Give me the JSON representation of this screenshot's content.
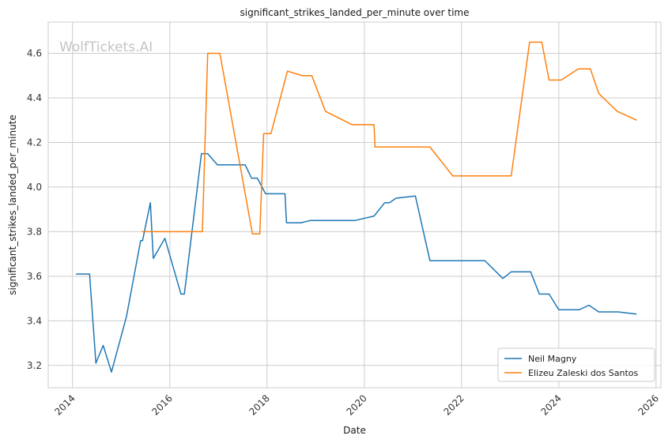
{
  "chart_data": {
    "type": "line",
    "title": "significant_strikes_landed_per_minute over time",
    "xlabel": "Date",
    "ylabel": "significant_strikes_landed_per_minute",
    "watermark": "WolfTickets.AI",
    "xlim": [
      2013.5,
      2026.1
    ],
    "ylim": [
      3.1,
      4.74
    ],
    "x_ticks": [
      2014,
      2016,
      2018,
      2020,
      2022,
      2024,
      2026
    ],
    "x_tick_labels": [
      "2014",
      "2016",
      "2018",
      "2020",
      "2022",
      "2024",
      "2026"
    ],
    "y_ticks": [
      3.2,
      3.4,
      3.6,
      3.8,
      4.0,
      4.2,
      4.4,
      4.6
    ],
    "y_tick_labels": [
      "3.2",
      "3.4",
      "3.6",
      "3.8",
      "4.0",
      "4.2",
      "4.4",
      "4.6"
    ],
    "grid": true,
    "legend_position": "bottom-right",
    "series": [
      {
        "name": "Neil Magny",
        "color": "#1f77b4",
        "points": [
          [
            2014.07,
            3.61
          ],
          [
            2014.35,
            3.61
          ],
          [
            2014.48,
            3.21
          ],
          [
            2014.63,
            3.29
          ],
          [
            2014.8,
            3.17
          ],
          [
            2015.11,
            3.42
          ],
          [
            2015.4,
            3.76
          ],
          [
            2015.44,
            3.76
          ],
          [
            2015.6,
            3.93
          ],
          [
            2015.66,
            3.68
          ],
          [
            2015.9,
            3.77
          ],
          [
            2016.23,
            3.52
          ],
          [
            2016.3,
            3.52
          ],
          [
            2016.65,
            4.15
          ],
          [
            2016.78,
            4.15
          ],
          [
            2016.98,
            4.1
          ],
          [
            2017.55,
            4.1
          ],
          [
            2017.68,
            4.04
          ],
          [
            2017.8,
            4.04
          ],
          [
            2017.97,
            3.97
          ],
          [
            2018.37,
            3.97
          ],
          [
            2018.4,
            3.84
          ],
          [
            2018.7,
            3.84
          ],
          [
            2018.88,
            3.85
          ],
          [
            2019.3,
            3.85
          ],
          [
            2019.8,
            3.85
          ],
          [
            2020.2,
            3.87
          ],
          [
            2020.42,
            3.93
          ],
          [
            2020.52,
            3.93
          ],
          [
            2020.65,
            3.95
          ],
          [
            2021.05,
            3.96
          ],
          [
            2021.35,
            3.67
          ],
          [
            2022.2,
            3.67
          ],
          [
            2022.48,
            3.67
          ],
          [
            2022.85,
            3.59
          ],
          [
            2023.02,
            3.62
          ],
          [
            2023.42,
            3.62
          ],
          [
            2023.6,
            3.52
          ],
          [
            2023.8,
            3.52
          ],
          [
            2024.0,
            3.45
          ],
          [
            2024.42,
            3.45
          ],
          [
            2024.62,
            3.47
          ],
          [
            2024.82,
            3.44
          ],
          [
            2025.22,
            3.44
          ],
          [
            2025.6,
            3.43
          ]
        ]
      },
      {
        "name": "Elizeu Zaleski dos Santos",
        "color": "#ff7f0e",
        "points": [
          [
            2015.43,
            3.8
          ],
          [
            2016.0,
            3.8
          ],
          [
            2016.67,
            3.8
          ],
          [
            2016.78,
            4.6
          ],
          [
            2017.03,
            4.6
          ],
          [
            2017.7,
            3.79
          ],
          [
            2017.85,
            3.79
          ],
          [
            2017.93,
            4.24
          ],
          [
            2018.08,
            4.24
          ],
          [
            2018.42,
            4.52
          ],
          [
            2018.72,
            4.5
          ],
          [
            2018.92,
            4.5
          ],
          [
            2019.2,
            4.34
          ],
          [
            2019.75,
            4.28
          ],
          [
            2020.2,
            4.28
          ],
          [
            2020.22,
            4.18
          ],
          [
            2020.5,
            4.18
          ],
          [
            2020.52,
            4.18
          ],
          [
            2020.55,
            4.18
          ],
          [
            2021.35,
            4.18
          ],
          [
            2021.82,
            4.05
          ],
          [
            2022.2,
            4.05
          ],
          [
            2023.02,
            4.05
          ],
          [
            2023.4,
            4.65
          ],
          [
            2023.65,
            4.65
          ],
          [
            2023.8,
            4.48
          ],
          [
            2024.05,
            4.48
          ],
          [
            2024.4,
            4.53
          ],
          [
            2024.65,
            4.53
          ],
          [
            2024.82,
            4.42
          ],
          [
            2025.2,
            4.34
          ],
          [
            2025.6,
            4.3
          ]
        ]
      }
    ]
  }
}
